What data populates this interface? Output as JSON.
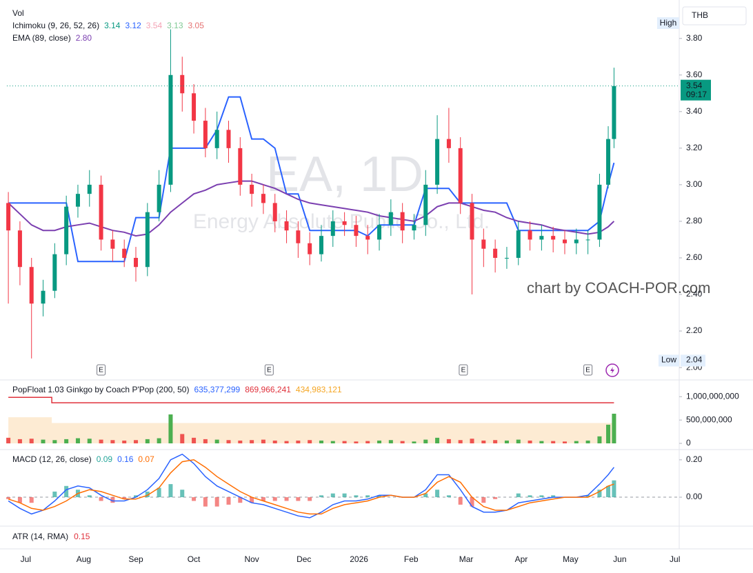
{
  "chart_data": [
    {
      "type": "candlestick",
      "title": "EA, 1D",
      "subtitle": "Energy Absolute Public Co., Ltd.",
      "legend": [
        {
          "text": "Vol"
        },
        {
          "text": "Ichimoku (9, 26, 52, 26)",
          "values": [
            "3.14",
            "3.12",
            "3.54",
            "3.13",
            "3.05"
          ],
          "colors": [
            "#089981",
            "#2962ff",
            "#f4a3b5",
            "#81c995",
            "#e57373"
          ]
        },
        {
          "text": "EMA (89, close)",
          "values": [
            "2.80"
          ],
          "colors": [
            "#7b3fb0"
          ]
        }
      ],
      "x": [
        0,
        4,
        8,
        12,
        16,
        20,
        24,
        28,
        32,
        36,
        40,
        44,
        48,
        52,
        56,
        60,
        64,
        68,
        72,
        76,
        80,
        84,
        88,
        92,
        96,
        100,
        104,
        108,
        112,
        116,
        120,
        124,
        128,
        132,
        136,
        140,
        144,
        148,
        152,
        156,
        160,
        164,
        168,
        172,
        176,
        180,
        184,
        188,
        192,
        196,
        200,
        204,
        207,
        209
      ],
      "open": [
        2.9,
        2.75,
        2.55,
        2.35,
        2.42,
        2.62,
        2.88,
        2.95,
        3.0,
        2.7,
        2.65,
        2.6,
        2.55,
        2.85,
        3.0,
        3.6,
        3.5,
        3.35,
        3.2,
        3.3,
        3.2,
        3.0,
        2.95,
        2.9,
        2.8,
        2.75,
        2.68,
        2.62,
        2.72,
        2.8,
        2.78,
        2.72,
        2.7,
        2.78,
        2.85,
        2.75,
        2.78,
        3.0,
        3.25,
        3.2,
        2.9,
        2.7,
        2.65,
        2.6,
        2.6,
        2.75,
        2.7,
        2.72,
        2.7,
        2.68,
        2.7,
        2.7,
        3.0,
        3.25
      ],
      "high": [
        2.96,
        2.8,
        2.6,
        2.48,
        2.68,
        2.94,
        3.0,
        3.08,
        3.05,
        2.75,
        2.7,
        2.66,
        2.9,
        3.08,
        3.85,
        3.7,
        3.55,
        3.42,
        3.4,
        3.35,
        3.26,
        3.06,
        3.0,
        2.95,
        2.86,
        2.8,
        2.74,
        2.78,
        2.86,
        2.85,
        2.83,
        2.78,
        2.84,
        2.92,
        2.9,
        2.84,
        3.08,
        3.38,
        3.42,
        3.26,
        2.95,
        2.76,
        2.7,
        2.66,
        2.8,
        2.8,
        2.78,
        2.77,
        2.75,
        2.76,
        2.75,
        3.06,
        3.32,
        3.64
      ],
      "low": [
        2.35,
        2.45,
        2.05,
        2.28,
        2.38,
        2.56,
        2.82,
        2.88,
        2.64,
        2.58,
        2.55,
        2.47,
        2.5,
        2.8,
        2.96,
        3.4,
        3.28,
        3.15,
        3.14,
        3.12,
        2.94,
        2.88,
        2.84,
        2.74,
        2.68,
        2.6,
        2.56,
        2.58,
        2.66,
        2.72,
        2.66,
        2.62,
        2.64,
        2.72,
        2.68,
        2.7,
        2.72,
        2.95,
        3.12,
        2.84,
        2.4,
        2.55,
        2.52,
        2.54,
        2.56,
        2.64,
        2.64,
        2.63,
        2.62,
        2.62,
        2.62,
        2.66,
        2.98,
        3.2
      ],
      "close": [
        2.75,
        2.55,
        2.35,
        2.42,
        2.62,
        2.88,
        2.95,
        3.0,
        2.7,
        2.65,
        2.6,
        2.55,
        2.85,
        3.0,
        3.6,
        3.5,
        3.35,
        3.2,
        3.3,
        3.2,
        3.0,
        2.95,
        2.9,
        2.8,
        2.75,
        2.68,
        2.62,
        2.72,
        2.8,
        2.78,
        2.72,
        2.7,
        2.78,
        2.85,
        2.75,
        2.78,
        3.0,
        3.25,
        3.2,
        2.9,
        2.7,
        2.65,
        2.6,
        2.6,
        2.75,
        2.7,
        2.72,
        2.7,
        2.68,
        2.7,
        2.7,
        3.0,
        3.25,
        3.54
      ],
      "up_color": "#089981",
      "down_color": "#f23645",
      "lines": [
        {
          "color": "#2962ff",
          "values": [
            2.9,
            2.9,
            2.9,
            2.9,
            2.9,
            2.9,
            2.58,
            2.58,
            2.58,
            2.58,
            2.58,
            2.82,
            2.82,
            2.82,
            3.2,
            3.2,
            3.2,
            3.2,
            3.3,
            3.48,
            3.48,
            3.25,
            3.25,
            3.2,
            2.95,
            2.95,
            2.75,
            2.75,
            2.75,
            2.75,
            2.75,
            2.72,
            2.78,
            2.78,
            2.78,
            2.78,
            2.98,
            2.98,
            2.98,
            2.9,
            2.9,
            2.9,
            2.9,
            2.9,
            2.75,
            2.75,
            2.75,
            2.75,
            2.75,
            2.75,
            2.75,
            2.8,
            3.0,
            3.12
          ]
        },
        {
          "color": "#7b3fb0",
          "values": [
            2.9,
            2.84,
            2.78,
            2.75,
            2.75,
            2.77,
            2.78,
            2.79,
            2.77,
            2.75,
            2.74,
            2.72,
            2.73,
            2.78,
            2.85,
            2.9,
            2.95,
            2.97,
            3.0,
            3.01,
            3.02,
            3.02,
            3.0,
            2.98,
            2.95,
            2.92,
            2.9,
            2.89,
            2.88,
            2.87,
            2.86,
            2.85,
            2.83,
            2.82,
            2.81,
            2.8,
            2.83,
            2.88,
            2.9,
            2.9,
            2.88,
            2.86,
            2.85,
            2.82,
            2.8,
            2.79,
            2.78,
            2.76,
            2.75,
            2.74,
            2.73,
            2.74,
            2.77,
            2.8
          ]
        }
      ],
      "xlim": [
        -0.5,
        231.5
      ],
      "ylim": [
        1.94,
        3.98
      ],
      "yticks": [
        {
          "value": 2.0,
          "label": "2.00"
        },
        {
          "value": 2.2,
          "label": "2.20"
        },
        {
          "value": 2.4,
          "label": "2.40"
        },
        {
          "value": 2.6,
          "label": "2.60"
        },
        {
          "value": 2.8,
          "label": "2.80"
        },
        {
          "value": 3.0,
          "label": "3.00"
        },
        {
          "value": 3.2,
          "label": "3.20"
        },
        {
          "value": 3.4,
          "label": "3.40"
        },
        {
          "value": 3.6,
          "label": "3.60"
        },
        {
          "value": 3.8,
          "label": "3.80"
        }
      ],
      "xticks": [
        {
          "value": 6,
          "label": "Jul"
        },
        {
          "value": 26,
          "label": "Aug"
        },
        {
          "value": 44,
          "label": "Sep"
        },
        {
          "value": 64,
          "label": "Oct"
        },
        {
          "value": 84,
          "label": "Nov"
        },
        {
          "value": 102,
          "label": "Dec"
        },
        {
          "value": 121,
          "label": "2026"
        },
        {
          "value": 139,
          "label": "Feb"
        },
        {
          "value": 158,
          "label": "Mar"
        },
        {
          "value": 177,
          "label": "Apr"
        },
        {
          "value": 194,
          "label": "May"
        },
        {
          "value": 211,
          "label": "Jun"
        },
        {
          "value": 230,
          "label": "Jul"
        }
      ],
      "last_price": {
        "value": 3.54,
        "time": "09:17",
        "color": "#089981"
      },
      "high_label": "High",
      "low_label": "Low",
      "low_value": 2.04,
      "earnings": {
        "x": [
          32,
          90,
          157,
          200
        ],
        "label": "E"
      },
      "currency": "THB",
      "credit": "chart by COACH-POR.com",
      "grid": false
    },
    {
      "type": "volume",
      "title": "PopFloat 1.03 Ginkgo by Coach P'Pop (200, 50)",
      "legend_values": [
        "635,377,299",
        "869,966,241",
        "434,983,121"
      ],
      "legend_colors": [
        "#2962ff",
        "#e0313b",
        "#f5a623"
      ],
      "x": [
        0,
        4,
        8,
        12,
        16,
        20,
        24,
        28,
        32,
        36,
        40,
        44,
        48,
        52,
        56,
        60,
        64,
        68,
        72,
        76,
        80,
        84,
        88,
        92,
        96,
        100,
        104,
        108,
        112,
        116,
        120,
        124,
        128,
        132,
        136,
        140,
        144,
        148,
        152,
        156,
        160,
        164,
        168,
        172,
        176,
        180,
        184,
        188,
        192,
        196,
        200,
        204,
        207,
        209
      ],
      "values": [
        120000000,
        90000000,
        100000000,
        80000000,
        70000000,
        90000000,
        110000000,
        100000000,
        80000000,
        70000000,
        60000000,
        70000000,
        90000000,
        110000000,
        620000000,
        200000000,
        120000000,
        90000000,
        80000000,
        70000000,
        60000000,
        70000000,
        80000000,
        60000000,
        50000000,
        60000000,
        70000000,
        60000000,
        50000000,
        50000000,
        40000000,
        50000000,
        60000000,
        70000000,
        50000000,
        40000000,
        80000000,
        120000000,
        90000000,
        70000000,
        100000000,
        60000000,
        70000000,
        60000000,
        80000000,
        60000000,
        50000000,
        50000000,
        40000000,
        50000000,
        60000000,
        150000000,
        400000000,
        635377299
      ],
      "up_color": "#4caf50",
      "down_color": "#ef5350",
      "float_line": {
        "color": "#e0313b",
        "x": [
          0,
          15,
          15,
          209
        ],
        "values": [
          985000000,
          985000000,
          869966241,
          869966241
        ]
      },
      "float_area": {
        "color": "#fdebd3",
        "x": [
          0,
          15,
          15,
          209
        ],
        "values": [
          560000000,
          560000000,
          434983121,
          434983121
        ]
      },
      "xlim": [
        -0.5,
        231.5
      ],
      "ylim": [
        0,
        1300000000
      ],
      "yticks": [
        0,
        {
          "value": 500000000,
          "label": "500,000,000"
        },
        {
          "value": 1000000000,
          "label": "1,000,000,000"
        }
      ]
    },
    {
      "type": "macd",
      "title": "MACD (12, 26, close)",
      "legend_values": [
        0.09,
        0.16,
        0.07
      ],
      "legend_colors": [
        "#26a69a",
        "#2962ff",
        "#ff6d00"
      ],
      "x": [
        0,
        4,
        8,
        12,
        16,
        20,
        24,
        28,
        32,
        36,
        40,
        44,
        48,
        52,
        56,
        60,
        64,
        68,
        72,
        76,
        80,
        84,
        88,
        92,
        96,
        100,
        104,
        108,
        112,
        116,
        120,
        124,
        128,
        132,
        136,
        140,
        144,
        148,
        152,
        156,
        160,
        164,
        168,
        172,
        176,
        180,
        184,
        188,
        192,
        196,
        200,
        204,
        207,
        209
      ],
      "histogram": {
        "up_color": "#26a69a",
        "down_color": "#ef5350",
        "values": [
          -0.01,
          -0.03,
          -0.03,
          0.0,
          0.03,
          0.06,
          0.04,
          0.01,
          -0.02,
          -0.03,
          -0.01,
          0.01,
          0.03,
          0.05,
          0.07,
          0.04,
          -0.02,
          -0.05,
          -0.05,
          -0.04,
          -0.03,
          -0.03,
          -0.02,
          -0.02,
          -0.02,
          -0.02,
          -0.02,
          0.01,
          0.02,
          0.02,
          0.01,
          0.01,
          0.01,
          0.0,
          0.0,
          0.0,
          0.02,
          0.04,
          0.01,
          -0.04,
          -0.05,
          -0.03,
          -0.01,
          0.0,
          0.02,
          0.01,
          0.01,
          0.01,
          0.0,
          0.0,
          0.01,
          0.04,
          0.06,
          0.09
        ]
      },
      "lines": [
        {
          "color": "#2962ff",
          "values": [
            -0.02,
            -0.06,
            -0.09,
            -0.07,
            -0.02,
            0.04,
            0.06,
            0.05,
            0.01,
            -0.02,
            -0.02,
            0.0,
            0.04,
            0.1,
            0.2,
            0.23,
            0.18,
            0.11,
            0.06,
            0.03,
            0.0,
            -0.03,
            -0.04,
            -0.06,
            -0.08,
            -0.1,
            -0.11,
            -0.08,
            -0.04,
            -0.02,
            -0.02,
            -0.01,
            0.01,
            0.01,
            0.0,
            0.0,
            0.04,
            0.12,
            0.12,
            0.04,
            -0.05,
            -0.08,
            -0.08,
            -0.07,
            -0.03,
            -0.02,
            -0.01,
            0.0,
            0.0,
            0.0,
            0.01,
            0.07,
            0.12,
            0.16
          ]
        },
        {
          "color": "#ff6d00",
          "values": [
            -0.01,
            -0.03,
            -0.06,
            -0.07,
            -0.05,
            -0.02,
            0.02,
            0.04,
            0.03,
            0.01,
            -0.01,
            -0.01,
            0.01,
            0.05,
            0.13,
            0.19,
            0.2,
            0.16,
            0.11,
            0.07,
            0.03,
            0.0,
            -0.02,
            -0.04,
            -0.06,
            -0.08,
            -0.09,
            -0.09,
            -0.06,
            -0.04,
            -0.03,
            -0.02,
            0.0,
            0.01,
            0.0,
            0.0,
            0.02,
            0.08,
            0.11,
            0.08,
            0.0,
            -0.05,
            -0.07,
            -0.07,
            -0.05,
            -0.03,
            -0.02,
            -0.01,
            0.0,
            0.0,
            0.0,
            0.03,
            0.06,
            0.07
          ]
        }
      ],
      "xlim": [
        -0.5,
        231.5
      ],
      "ylim": [
        -0.14,
        0.24
      ],
      "yticks": [
        {
          "value": 0,
          "label": "0.00"
        },
        {
          "value": 0.2,
          "label": "0.20"
        }
      ]
    }
  ],
  "atr": {
    "label": "ATR (14, RMA)",
    "value": 0.15,
    "color": "#e0313b"
  }
}
